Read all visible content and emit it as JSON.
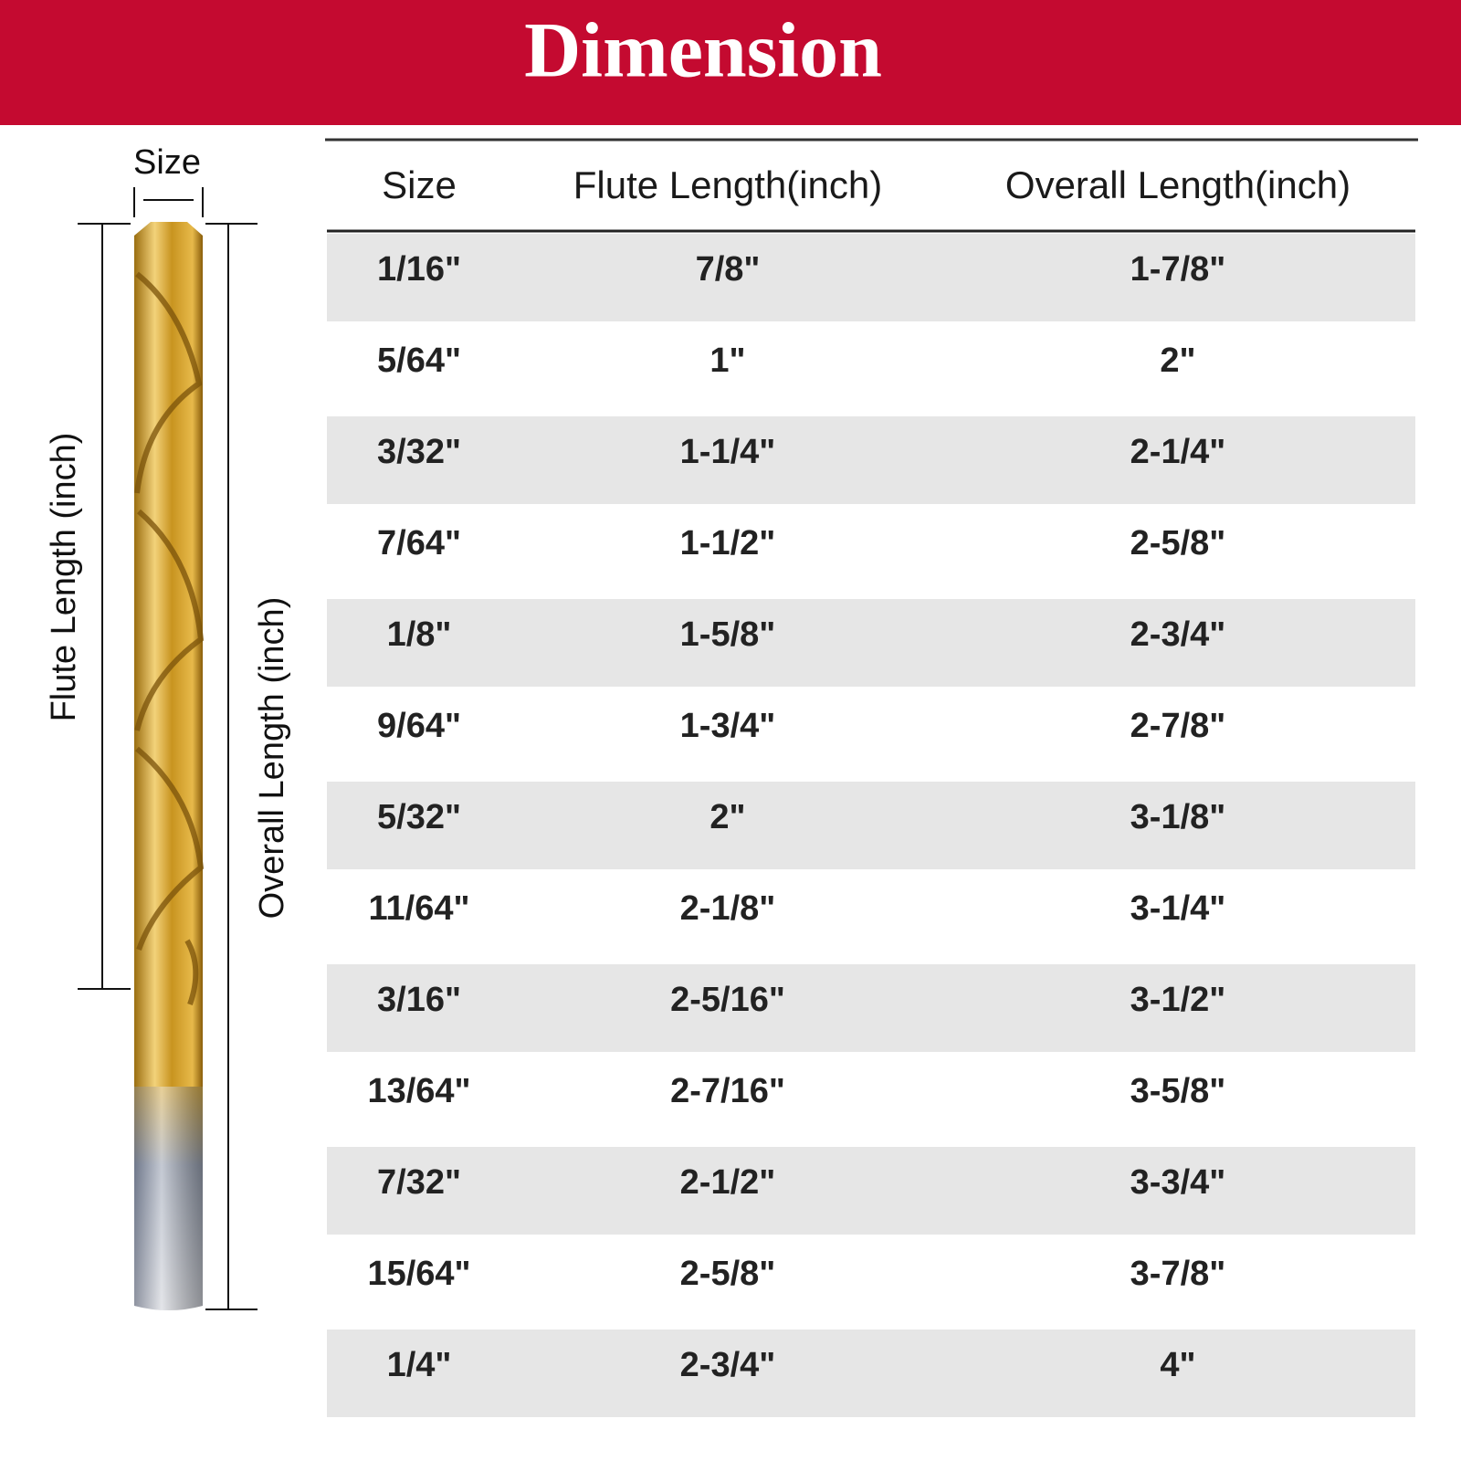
{
  "header": {
    "title": "Dimension"
  },
  "diagram": {
    "size_label": "Size",
    "flute_label": "Flute Length (inch)",
    "overall_label": "Overall Length (inch)"
  },
  "table": {
    "columns": [
      "Size",
      "Flute Length(inch)",
      "Overall Length(inch)"
    ],
    "rows": [
      [
        "1/16\"",
        "7/8\"",
        "1-7/8\""
      ],
      [
        "5/64\"",
        "1\"",
        "2\""
      ],
      [
        "3/32\"",
        "1-1/4\"",
        "2-1/4\""
      ],
      [
        "7/64\"",
        "1-1/2\"",
        "2-5/8\""
      ],
      [
        "1/8\"",
        "1-5/8\"",
        "2-3/4\""
      ],
      [
        "9/64\"",
        "1-3/4\"",
        "2-7/8\""
      ],
      [
        "5/32\"",
        "2\"",
        "3-1/8\""
      ],
      [
        "11/64\"",
        "2-1/8\"",
        "3-1/4\""
      ],
      [
        "3/16\"",
        "2-5/16\"",
        "3-1/2\""
      ],
      [
        "13/64\"",
        "2-7/16\"",
        "3-5/8\""
      ],
      [
        "7/32\"",
        "2-1/2\"",
        "3-3/4\""
      ],
      [
        "15/64\"",
        "2-5/8\"",
        "3-7/8\""
      ],
      [
        "1/4\"",
        "2-3/4\"",
        "4\""
      ]
    ]
  }
}
